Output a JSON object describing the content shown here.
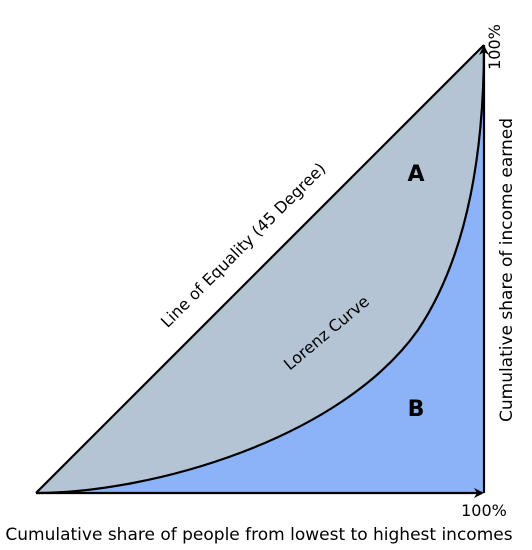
{
  "labels": {
    "x_axis": "Cumulative share of people from lowest to highest incomes",
    "y_axis": "Cumulative share of income earned",
    "x_max": "100%",
    "y_max": "100%",
    "equality_line": "Line of Equality (45 Degree)",
    "lorenz_curve": "Lorenz Curve",
    "region_a": "A",
    "region_b": "B"
  },
  "colors": {
    "region_a": "#b5c4d4",
    "region_b": "#8cb2f7",
    "stroke": "#000000"
  }
}
